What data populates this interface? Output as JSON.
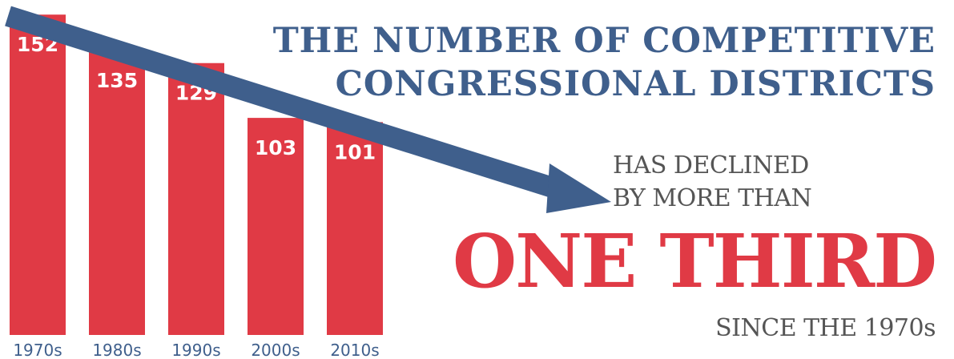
{
  "chart_data": {
    "type": "bar",
    "categories": [
      "1970s",
      "1980s",
      "1990s",
      "2000s",
      "2010s"
    ],
    "values": [
      152,
      135,
      129,
      103,
      101
    ],
    "ylim": [
      0,
      160
    ],
    "grid": false,
    "colors": {
      "bar": "#e03a45",
      "bar_label": "#ffffff",
      "category_label": "#3f5f8c",
      "arrow": "#3f5f8c"
    }
  },
  "headline": {
    "line1": "THE NUMBER OF COMPETITIVE",
    "line2": "CONGRESSIONAL DISTRICTS"
  },
  "subtext": {
    "line1": "HAS DECLINED",
    "line2": "BY MORE THAN",
    "highlight": "ONE THIRD",
    "since": "SINCE THE 1970s"
  },
  "colors": {
    "title": "#3f5f8c",
    "highlight": "#e03a45",
    "subtext": "#555555"
  }
}
